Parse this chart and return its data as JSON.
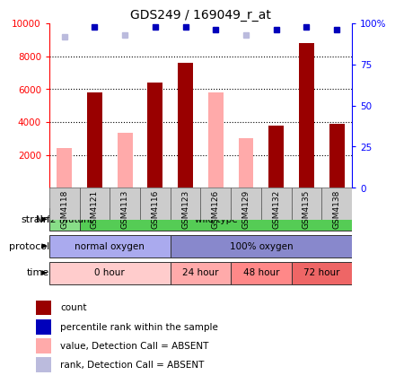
{
  "title": "GDS249 / 169049_r_at",
  "samples": [
    "GSM4118",
    "GSM4121",
    "GSM4113",
    "GSM4116",
    "GSM4123",
    "GSM4126",
    "GSM4129",
    "GSM4132",
    "GSM4135",
    "GSM4138"
  ],
  "count_values": [
    null,
    5800,
    null,
    6400,
    7600,
    null,
    null,
    3800,
    8800,
    3900
  ],
  "absent_values": [
    2400,
    null,
    3350,
    null,
    null,
    5800,
    3000,
    null,
    null,
    null
  ],
  "percentile_rank": [
    null,
    98,
    null,
    98,
    98,
    96,
    null,
    96,
    98,
    96
  ],
  "absent_rank": [
    92,
    null,
    93,
    null,
    null,
    null,
    93,
    null,
    null,
    null
  ],
  "ylim": [
    0,
    10000
  ],
  "y2lim": [
    0,
    100
  ],
  "yticks": [
    2000,
    4000,
    6000,
    8000,
    10000
  ],
  "y2ticks": [
    0,
    25,
    50,
    75,
    100
  ],
  "y2labels": [
    "0",
    "25",
    "50",
    "75",
    "100%"
  ],
  "strain_groups": [
    {
      "label": "Nrf2 mutant",
      "start": 0,
      "end": 1,
      "color": "#88DD88"
    },
    {
      "label": "wild type",
      "start": 1,
      "end": 10,
      "color": "#55CC55"
    }
  ],
  "protocol_groups": [
    {
      "label": "normal oxygen",
      "start": 0,
      "end": 4,
      "color": "#AAAAEE"
    },
    {
      "label": "100% oxygen",
      "start": 4,
      "end": 10,
      "color": "#8888CC"
    }
  ],
  "time_groups": [
    {
      "label": "0 hour",
      "start": 0,
      "end": 4,
      "color": "#FFCCCC"
    },
    {
      "label": "24 hour",
      "start": 4,
      "end": 6,
      "color": "#FFAAAA"
    },
    {
      "label": "48 hour",
      "start": 6,
      "end": 8,
      "color": "#FF8888"
    },
    {
      "label": "72 hour",
      "start": 8,
      "end": 10,
      "color": "#EE6666"
    }
  ],
  "bar_color_present": "#990000",
  "bar_color_absent": "#FFAAAA",
  "dot_color_present": "#0000BB",
  "dot_color_absent": "#BBBBDD",
  "bar_width": 0.5,
  "sample_box_color": "#CCCCCC",
  "legend_items": [
    {
      "color": "#990000",
      "label": "count"
    },
    {
      "color": "#0000BB",
      "label": "percentile rank within the sample"
    },
    {
      "color": "#FFAAAA",
      "label": "value, Detection Call = ABSENT"
    },
    {
      "color": "#BBBBDD",
      "label": "rank, Detection Call = ABSENT"
    }
  ]
}
